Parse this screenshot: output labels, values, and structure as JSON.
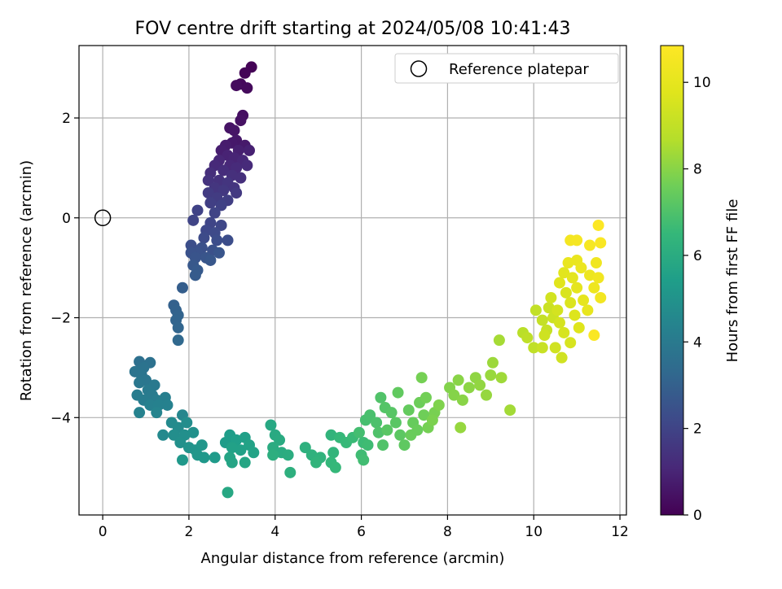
{
  "chart_data": {
    "type": "scatter",
    "title": "FOV centre drift starting at 2024/05/08 10:41:43",
    "xlabel": "Angular distance from reference (arcmin)",
    "ylabel": "Rotation from reference (arcmin)",
    "xlim": [
      -0.55,
      12.15
    ],
    "ylim": [
      -5.95,
      3.45
    ],
    "x_ticks": [
      0,
      2,
      4,
      6,
      8,
      10,
      12
    ],
    "y_ticks": [
      -4,
      -2,
      0,
      2
    ],
    "x_tick_labels": [
      "0",
      "2",
      "4",
      "6",
      "8",
      "10",
      "12"
    ],
    "y_tick_labels": [
      "−4",
      "−2",
      "0",
      "2"
    ],
    "grid": true,
    "legend": {
      "position": "top-right",
      "entries": [
        {
          "label": "Reference platepar",
          "marker": "open-circle"
        }
      ]
    },
    "reference_point": {
      "x": 0,
      "y": 0
    },
    "colorbar": {
      "label": "Hours from first FF file",
      "min": 0,
      "max": 10.85,
      "ticks": [
        0,
        2,
        4,
        6,
        8,
        10
      ],
      "tick_labels": [
        "0",
        "2",
        "4",
        "6",
        "8",
        "10"
      ],
      "colormap": "viridis"
    },
    "series": [
      {
        "points": [
          [
            3.45,
            3.02,
            0.05
          ],
          [
            3.3,
            2.9,
            0.1
          ],
          [
            3.2,
            2.68,
            0.2
          ],
          [
            3.35,
            2.6,
            0.25
          ],
          [
            3.1,
            2.65,
            0.3
          ],
          [
            3.25,
            2.05,
            0.4
          ],
          [
            3.2,
            1.95,
            0.45
          ],
          [
            2.95,
            1.8,
            0.5
          ],
          [
            3.05,
            1.75,
            0.55
          ],
          [
            3.1,
            1.55,
            0.6
          ],
          [
            3.0,
            1.5,
            0.65
          ],
          [
            3.3,
            1.45,
            0.7
          ],
          [
            2.85,
            1.45,
            0.75
          ],
          [
            2.75,
            1.35,
            0.8
          ],
          [
            3.15,
            1.35,
            0.85
          ],
          [
            3.4,
            1.35,
            0.9
          ],
          [
            2.9,
            1.25,
            0.95
          ],
          [
            3.05,
            1.2,
            1.0
          ],
          [
            2.7,
            1.15,
            1.05
          ],
          [
            3.25,
            1.15,
            1.1
          ],
          [
            2.95,
            1.05,
            1.1
          ],
          [
            2.6,
            1.05,
            1.15
          ],
          [
            3.35,
            1.05,
            1.2
          ],
          [
            3.1,
            1.0,
            1.2
          ],
          [
            2.8,
            0.95,
            1.25
          ],
          [
            2.5,
            0.9,
            1.3
          ],
          [
            3.0,
            0.85,
            1.35
          ],
          [
            3.2,
            0.8,
            1.35
          ],
          [
            2.7,
            0.75,
            1.4
          ],
          [
            2.45,
            0.75,
            1.45
          ],
          [
            2.9,
            0.7,
            1.5
          ],
          [
            3.05,
            0.6,
            1.5
          ],
          [
            2.6,
            0.6,
            1.55
          ],
          [
            2.8,
            0.55,
            1.6
          ],
          [
            3.1,
            0.5,
            1.65
          ],
          [
            2.45,
            0.5,
            1.7
          ],
          [
            2.65,
            0.4,
            1.75
          ],
          [
            2.9,
            0.35,
            1.8
          ],
          [
            2.5,
            0.3,
            1.85
          ],
          [
            2.75,
            0.25,
            1.9
          ],
          [
            2.2,
            0.15,
            1.95
          ],
          [
            2.6,
            0.1,
            2.0
          ],
          [
            2.1,
            -0.05,
            2.0
          ],
          [
            2.5,
            -0.1,
            2.05
          ],
          [
            2.75,
            -0.15,
            2.1
          ],
          [
            2.4,
            -0.25,
            2.15
          ],
          [
            2.6,
            -0.3,
            2.2
          ],
          [
            2.35,
            -0.4,
            2.25
          ],
          [
            2.65,
            -0.45,
            2.3
          ],
          [
            2.9,
            -0.45,
            2.3
          ],
          [
            2.05,
            -0.55,
            2.35
          ],
          [
            2.3,
            -0.6,
            2.4
          ],
          [
            2.55,
            -0.65,
            2.45
          ],
          [
            2.2,
            -0.7,
            2.5
          ],
          [
            2.05,
            -0.7,
            2.5
          ],
          [
            2.15,
            -0.8,
            2.55
          ],
          [
            2.4,
            -0.8,
            2.6
          ],
          [
            2.7,
            -0.7,
            2.6
          ],
          [
            2.5,
            -0.85,
            2.65
          ],
          [
            2.1,
            -0.95,
            2.7
          ],
          [
            2.2,
            -1.05,
            2.75
          ],
          [
            2.15,
            -1.15,
            2.8
          ],
          [
            1.85,
            -1.4,
            2.9
          ],
          [
            1.65,
            -1.75,
            3.0
          ],
          [
            1.7,
            -1.85,
            3.05
          ],
          [
            1.75,
            -1.95,
            3.1
          ],
          [
            1.7,
            -2.05,
            3.15
          ],
          [
            1.75,
            -2.2,
            3.2
          ],
          [
            1.75,
            -2.45,
            3.3
          ],
          [
            0.85,
            -2.88,
            3.6
          ],
          [
            1.1,
            -2.9,
            3.65
          ],
          [
            0.95,
            -3.0,
            3.7
          ],
          [
            0.75,
            -3.08,
            3.75
          ],
          [
            0.9,
            -3.15,
            3.8
          ],
          [
            1.0,
            -3.25,
            3.85
          ],
          [
            0.85,
            -3.3,
            3.9
          ],
          [
            1.2,
            -3.35,
            3.95
          ],
          [
            1.05,
            -3.45,
            4.0
          ],
          [
            1.15,
            -3.55,
            4.05
          ],
          [
            0.8,
            -3.55,
            4.1
          ],
          [
            0.95,
            -3.65,
            4.1
          ],
          [
            1.25,
            -3.65,
            4.15
          ],
          [
            1.45,
            -3.6,
            4.2
          ],
          [
            1.1,
            -3.75,
            4.25
          ],
          [
            1.3,
            -3.75,
            4.3
          ],
          [
            1.5,
            -3.75,
            4.3
          ],
          [
            0.85,
            -3.9,
            4.35
          ],
          [
            1.25,
            -3.9,
            4.4
          ],
          [
            1.85,
            -3.95,
            4.5
          ],
          [
            1.4,
            -4.35,
            4.6
          ],
          [
            1.6,
            -4.1,
            4.65
          ],
          [
            1.75,
            -4.2,
            4.7
          ],
          [
            1.95,
            -4.1,
            4.75
          ],
          [
            1.65,
            -4.35,
            4.8
          ],
          [
            1.9,
            -4.35,
            4.85
          ],
          [
            2.1,
            -4.3,
            4.9
          ],
          [
            1.8,
            -4.5,
            4.9
          ],
          [
            2.0,
            -4.6,
            5.0
          ],
          [
            2.15,
            -4.65,
            5.05
          ],
          [
            2.3,
            -4.55,
            5.1
          ],
          [
            2.2,
            -4.75,
            5.15
          ],
          [
            2.35,
            -4.8,
            5.2
          ],
          [
            1.85,
            -4.85,
            5.2
          ],
          [
            2.6,
            -4.8,
            5.3
          ],
          [
            2.85,
            -4.5,
            5.35
          ],
          [
            2.95,
            -4.35,
            5.4
          ],
          [
            3.1,
            -4.45,
            5.45
          ],
          [
            3.3,
            -4.4,
            5.5
          ],
          [
            3.0,
            -4.6,
            5.55
          ],
          [
            3.2,
            -4.65,
            5.55
          ],
          [
            3.4,
            -4.55,
            5.6
          ],
          [
            3.5,
            -4.7,
            5.65
          ],
          [
            2.95,
            -4.8,
            5.7
          ],
          [
            3.0,
            -4.9,
            5.7
          ],
          [
            3.3,
            -4.9,
            5.75
          ],
          [
            2.9,
            -5.5,
            5.8
          ],
          [
            3.9,
            -4.15,
            5.85
          ],
          [
            4.0,
            -4.35,
            5.9
          ],
          [
            4.1,
            -4.45,
            5.95
          ],
          [
            3.95,
            -4.6,
            6.0
          ],
          [
            4.15,
            -4.7,
            6.0
          ],
          [
            4.3,
            -4.75,
            6.05
          ],
          [
            3.95,
            -4.75,
            6.1
          ],
          [
            4.35,
            -5.1,
            6.15
          ],
          [
            4.7,
            -4.6,
            6.2
          ],
          [
            4.85,
            -4.75,
            6.25
          ],
          [
            5.05,
            -4.8,
            6.3
          ],
          [
            4.95,
            -4.9,
            6.35
          ],
          [
            5.3,
            -4.35,
            6.35
          ],
          [
            5.35,
            -4.7,
            6.4
          ],
          [
            5.3,
            -4.9,
            6.45
          ],
          [
            5.4,
            -5.0,
            6.5
          ],
          [
            5.5,
            -4.4,
            6.5
          ],
          [
            5.65,
            -4.5,
            6.55
          ],
          [
            5.8,
            -4.4,
            6.6
          ],
          [
            6.05,
            -4.5,
            6.65
          ],
          [
            6.15,
            -4.55,
            6.7
          ],
          [
            6.0,
            -4.75,
            6.7
          ],
          [
            6.05,
            -4.85,
            6.75
          ],
          [
            5.95,
            -4.3,
            6.8
          ],
          [
            6.1,
            -4.05,
            6.85
          ],
          [
            6.2,
            -3.95,
            6.9
          ],
          [
            6.35,
            -4.1,
            6.95
          ],
          [
            6.4,
            -4.3,
            7.0
          ],
          [
            6.5,
            -4.55,
            7.05
          ],
          [
            6.45,
            -3.6,
            7.05
          ],
          [
            6.55,
            -3.8,
            7.1
          ],
          [
            6.7,
            -3.9,
            7.15
          ],
          [
            6.8,
            -4.1,
            7.2
          ],
          [
            6.6,
            -4.25,
            7.2
          ],
          [
            6.9,
            -4.35,
            7.25
          ],
          [
            7.0,
            -4.55,
            7.3
          ],
          [
            6.85,
            -3.5,
            7.35
          ],
          [
            7.1,
            -3.85,
            7.4
          ],
          [
            7.2,
            -4.1,
            7.45
          ],
          [
            7.3,
            -4.25,
            7.5
          ],
          [
            7.15,
            -4.35,
            7.5
          ],
          [
            7.35,
            -3.7,
            7.55
          ],
          [
            7.45,
            -3.95,
            7.6
          ],
          [
            7.5,
            -3.6,
            7.65
          ],
          [
            7.55,
            -4.2,
            7.7
          ],
          [
            7.4,
            -3.2,
            7.7
          ],
          [
            7.7,
            -3.9,
            7.75
          ],
          [
            7.65,
            -4.05,
            7.8
          ],
          [
            7.8,
            -3.75,
            7.85
          ],
          [
            8.05,
            -3.4,
            7.9
          ],
          [
            8.15,
            -3.55,
            7.95
          ],
          [
            8.25,
            -3.25,
            8.0
          ],
          [
            8.35,
            -3.65,
            8.0
          ],
          [
            8.5,
            -3.4,
            8.05
          ],
          [
            8.65,
            -3.2,
            8.1
          ],
          [
            8.75,
            -3.35,
            8.15
          ],
          [
            8.9,
            -3.55,
            8.2
          ],
          [
            8.3,
            -4.2,
            8.2
          ],
          [
            9.0,
            -3.15,
            8.25
          ],
          [
            9.05,
            -2.9,
            8.3
          ],
          [
            9.25,
            -3.2,
            8.35
          ],
          [
            9.45,
            -3.85,
            8.4
          ],
          [
            9.2,
            -2.45,
            8.45
          ],
          [
            9.75,
            -2.3,
            8.8
          ],
          [
            9.85,
            -2.4,
            8.9
          ],
          [
            10.0,
            -2.6,
            8.95
          ],
          [
            10.05,
            -1.85,
            9.0
          ],
          [
            10.2,
            -2.05,
            9.05
          ],
          [
            10.3,
            -2.25,
            9.1
          ],
          [
            10.2,
            -2.6,
            9.15
          ],
          [
            10.35,
            -1.8,
            9.2
          ],
          [
            10.45,
            -2.0,
            9.25
          ],
          [
            10.25,
            -2.35,
            9.3
          ],
          [
            10.5,
            -2.6,
            9.35
          ],
          [
            10.65,
            -2.8,
            9.35
          ],
          [
            10.4,
            -1.6,
            9.4
          ],
          [
            10.55,
            -1.85,
            9.45
          ],
          [
            10.6,
            -2.1,
            9.5
          ],
          [
            10.7,
            -2.3,
            9.55
          ],
          [
            10.85,
            -2.5,
            9.55
          ],
          [
            10.75,
            -1.5,
            9.6
          ],
          [
            10.85,
            -1.7,
            9.65
          ],
          [
            10.95,
            -1.95,
            9.7
          ],
          [
            11.05,
            -2.2,
            9.75
          ],
          [
            10.6,
            -1.3,
            9.8
          ],
          [
            10.7,
            -1.1,
            9.85
          ],
          [
            10.9,
            -1.2,
            9.9
          ],
          [
            11.0,
            -1.4,
            9.95
          ],
          [
            11.15,
            -1.65,
            10.0
          ],
          [
            11.25,
            -1.85,
            10.05
          ],
          [
            10.8,
            -0.9,
            10.1
          ],
          [
            11.0,
            -0.85,
            10.15
          ],
          [
            11.1,
            -1.0,
            10.2
          ],
          [
            11.3,
            -1.15,
            10.25
          ],
          [
            11.4,
            -1.4,
            10.3
          ],
          [
            11.45,
            -0.9,
            10.35
          ],
          [
            11.5,
            -1.2,
            10.4
          ],
          [
            11.55,
            -1.6,
            10.45
          ],
          [
            10.85,
            -0.45,
            10.5
          ],
          [
            11.0,
            -0.45,
            10.55
          ],
          [
            11.3,
            -0.55,
            10.6
          ],
          [
            11.55,
            -0.5,
            10.7
          ],
          [
            11.4,
            -2.35,
            10.75
          ],
          [
            11.5,
            -0.15,
            10.8
          ]
        ]
      }
    ]
  }
}
